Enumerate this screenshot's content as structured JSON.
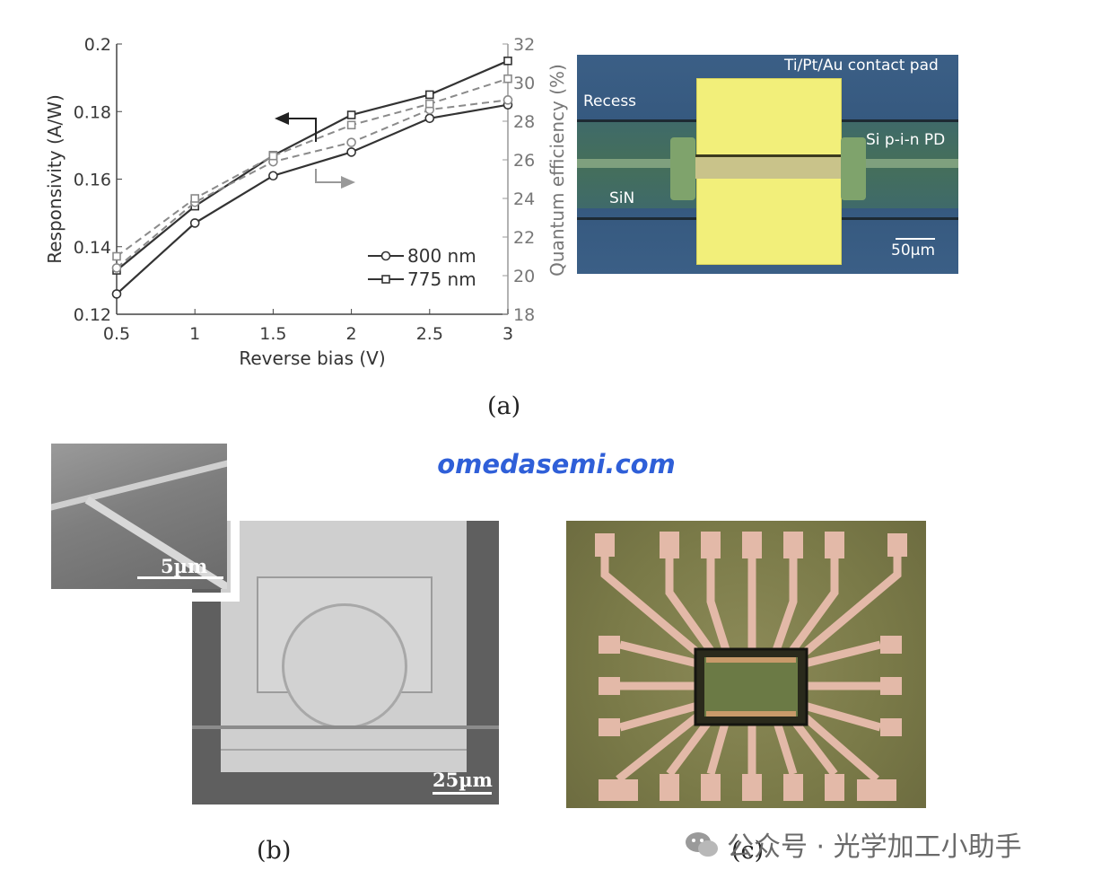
{
  "chart_data": {
    "type": "line",
    "title": "",
    "xlabel": "Reverse bias (V)",
    "ylabel": "Responsivity (A/W)",
    "y2label": "Quantum efficiency (%)",
    "xlim": [
      0.5,
      3
    ],
    "ylim": [
      0.12,
      0.2
    ],
    "y2lim": [
      18,
      32
    ],
    "x": [
      0.5,
      1,
      1.5,
      2,
      2.5,
      3
    ],
    "x_tick_labels": [
      "0.5",
      "1",
      "1.5",
      "2",
      "2.5",
      "3"
    ],
    "y_tick_labels": [
      "0.12",
      "0.14",
      "0.16",
      "0.18",
      "0.2"
    ],
    "y_ticks": [
      0.12,
      0.14,
      0.16,
      0.18,
      0.2
    ],
    "y2_tick_labels": [
      "18",
      "20",
      "22",
      "24",
      "26",
      "28",
      "30",
      "32"
    ],
    "y2_ticks": [
      18,
      20,
      22,
      24,
      26,
      28,
      30,
      32
    ],
    "legend_position": "bottom-right",
    "series": [
      {
        "name": "800 nm",
        "axis": "left",
        "marker": "circle",
        "style": "solid",
        "color": "#333333",
        "values": [
          0.126,
          0.147,
          0.161,
          0.168,
          0.178,
          0.182
        ]
      },
      {
        "name": "775 nm",
        "axis": "left",
        "marker": "square",
        "style": "solid",
        "color": "#333333",
        "values": [
          0.133,
          0.152,
          0.167,
          0.179,
          0.185,
          0.195
        ]
      },
      {
        "name": "",
        "axis": "right",
        "marker": "circle",
        "style": "dashed",
        "color": "#8a8a8a",
        "values": [
          20.4,
          23.8,
          25.9,
          26.9,
          28.6,
          29.1
        ]
      },
      {
        "name": "",
        "axis": "right",
        "marker": "square",
        "style": "dashed",
        "color": "#8a8a8a",
        "values": [
          21.0,
          24.0,
          26.2,
          27.8,
          28.9,
          30.2
        ]
      }
    ]
  },
  "figure_a": {
    "micrograph_labels": {
      "contact_pad": "Ti/Pt/Au contact pad",
      "recess": "Recess",
      "pd": "Si p-i-n PD",
      "sin": "SiN",
      "scale": "50µm"
    },
    "panel_label": "(a)"
  },
  "figure_b": {
    "inset_scale": "5µm",
    "main_scale": "25µm",
    "panel_label": "(b)"
  },
  "figure_c": {
    "panel_label": "(c)"
  },
  "watermarks": {
    "site": "omedasemi.com",
    "account": "公众号 · 光学加工小助手"
  },
  "colors": {
    "pad_yellow": "#f2ef7a",
    "watermark_blue": "#2f5fd8"
  }
}
